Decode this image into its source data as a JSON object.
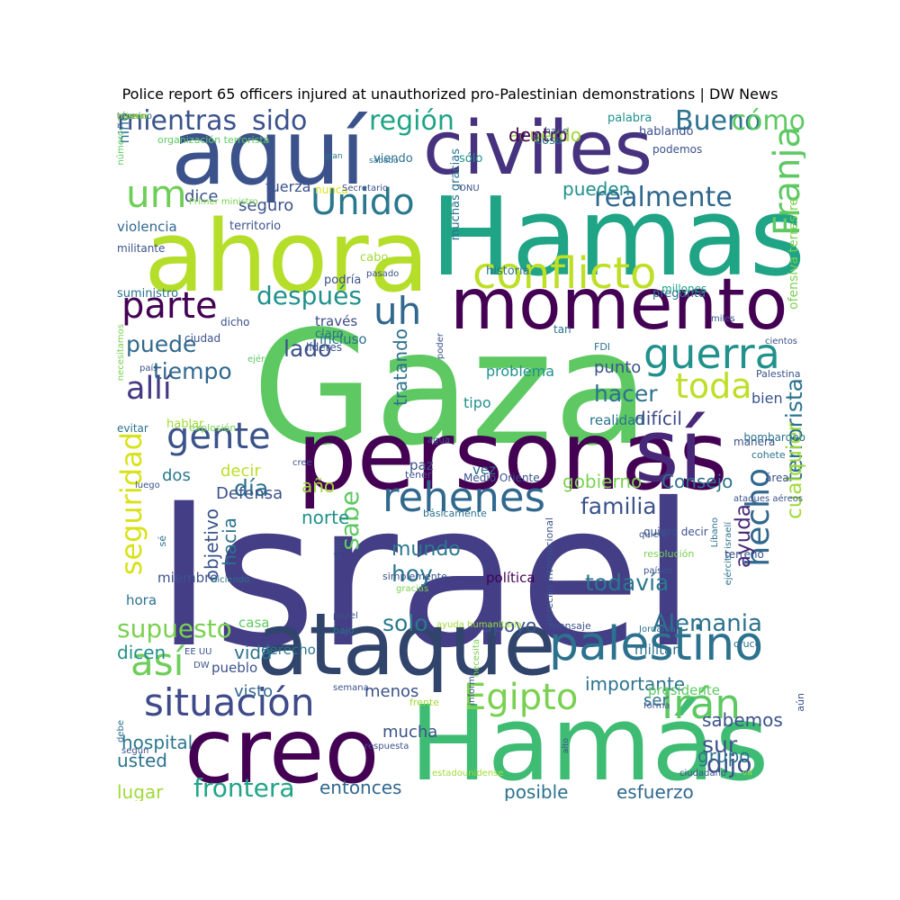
{
  "title": "Police report 65 officers injured at unauthorized pro-Palestinian demonstrations | DW News",
  "words": [
    {
      "text": "Israel",
      "color": "#433e85"
    },
    {
      "text": "Gaza",
      "color": "#5ec962"
    },
    {
      "text": "Hamás",
      "color": "#3fbc73"
    },
    {
      "text": "Hamas",
      "color": "#20a486"
    },
    {
      "text": "personas",
      "color": "#440154"
    },
    {
      "text": "ahora",
      "color": "#b5de2b"
    },
    {
      "text": "aquí",
      "color": "#3b528b"
    },
    {
      "text": "ataque",
      "color": "#31446b"
    },
    {
      "text": "creo",
      "color": "#440154"
    },
    {
      "text": "civiles",
      "color": "#46327e"
    },
    {
      "text": "momento",
      "color": "#440154"
    },
    {
      "text": "sí",
      "color": "#482878"
    },
    {
      "text": "palestino",
      "color": "#2c728e"
    },
    {
      "text": "rehenes",
      "color": "#31688e"
    },
    {
      "text": "conflicto",
      "color": "#bddf26"
    },
    {
      "text": "situación",
      "color": "#3e4a89"
    },
    {
      "text": "guerra",
      "color": "#21918c"
    },
    {
      "text": "Egipto",
      "color": "#7ad151"
    },
    {
      "text": "Irán",
      "color": "#5ec962"
    },
    {
      "text": "gente",
      "color": "#3b528b"
    },
    {
      "text": "parte",
      "color": "#440154"
    },
    {
      "text": "uh",
      "color": "#31688e"
    },
    {
      "text": "allí",
      "color": "#443983"
    },
    {
      "text": "toda",
      "color": "#bddf26"
    },
    {
      "text": "así",
      "color": "#6ece58"
    },
    {
      "text": "Unido",
      "color": "#2a788e"
    },
    {
      "text": "um",
      "color": "#6ece58"
    },
    {
      "text": "Franja",
      "color": "#5ec962"
    },
    {
      "text": "hecho",
      "color": "#31688e"
    },
    {
      "text": "seguridad",
      "color": "#d8e219"
    },
    {
      "text": "región",
      "color": "#20a486"
    },
    {
      "text": "realmente",
      "color": "#31688e"
    },
    {
      "text": "mientras",
      "color": "#3b528b"
    },
    {
      "text": "sido",
      "color": "#3b528b"
    },
    {
      "text": "Bueno",
      "color": "#2c728e"
    },
    {
      "text": "cómo",
      "color": "#5ec962"
    },
    {
      "text": "después",
      "color": "#21918c"
    },
    {
      "text": "puede",
      "color": "#31688e"
    },
    {
      "text": "tiempo",
      "color": "#31688e"
    },
    {
      "text": "lado",
      "color": "#3b528b"
    },
    {
      "text": "hacer",
      "color": "#2c728e"
    },
    {
      "text": "supuesto",
      "color": "#7ad151"
    },
    {
      "text": "Alemania",
      "color": "#2c728e"
    },
    {
      "text": "frontera",
      "color": "#20a486"
    },
    {
      "text": "familia",
      "color": "#3b528b"
    },
    {
      "text": "todavía",
      "color": "#2a788e"
    },
    {
      "text": "ayuda",
      "color": "#482878"
    },
    {
      "text": "dijo",
      "color": "#3b528b"
    },
    {
      "text": "sur",
      "color": "#3b528b"
    },
    {
      "text": "día",
      "color": "#2c728e"
    },
    {
      "text": "hoy",
      "color": "#2a788e"
    },
    {
      "text": "solo",
      "color": "#2a788e"
    },
    {
      "text": "sabe",
      "color": "#5ec962"
    },
    {
      "text": "terrorista",
      "color": "#2c728e"
    },
    {
      "text": "cualquier",
      "color": "#a0da39"
    },
    {
      "text": "difícil",
      "color": "#3e4a89"
    },
    {
      "text": "acuerdo",
      "color": "#a0da39"
    },
    {
      "text": "dentro",
      "color": "#440154"
    },
    {
      "text": "pueden",
      "color": "#21918c"
    },
    {
      "text": "mundo",
      "color": "#2a788e"
    },
    {
      "text": "gobierno",
      "color": "#7ad151"
    },
    {
      "text": "Consejo",
      "color": "#2c728e"
    },
    {
      "text": "apoyo",
      "color": "#3b528b"
    },
    {
      "text": "importante",
      "color": "#2c728e"
    },
    {
      "text": "sabemos",
      "color": "#3b528b"
    },
    {
      "text": "posible",
      "color": "#2c728e"
    },
    {
      "text": "esfuerzo",
      "color": "#31688e"
    },
    {
      "text": "entonces",
      "color": "#31688e"
    },
    {
      "text": "hospital",
      "color": "#2a788e"
    },
    {
      "text": "usted",
      "color": "#2c728e"
    },
    {
      "text": "lugar",
      "color": "#a0da39"
    },
    {
      "text": "visto",
      "color": "#31688e"
    },
    {
      "text": "menos",
      "color": "#3b528b"
    },
    {
      "text": "mucha",
      "color": "#3b528b"
    },
    {
      "text": "ser",
      "color": "#2c728e"
    },
    {
      "text": "grupo",
      "color": "#2c728e"
    },
    {
      "text": "dicen",
      "color": "#21918c"
    },
    {
      "text": "vida",
      "color": "#2c728e"
    },
    {
      "text": "dos",
      "color": "#2a788e"
    },
    {
      "text": "decir",
      "color": "#bddf26"
    },
    {
      "text": "norte",
      "color": "#21918c"
    },
    {
      "text": "año",
      "color": "#a0da39"
    },
    {
      "text": "objetivo",
      "color": "#3b528b"
    },
    {
      "text": "hacia",
      "color": "#2c728e"
    },
    {
      "text": "tratando",
      "color": "#2c728e"
    },
    {
      "text": "seguro",
      "color": "#3b528b"
    },
    {
      "text": "dice",
      "color": "#3b528b"
    },
    {
      "text": "fuerza",
      "color": "#3b528b"
    },
    {
      "text": "niño",
      "color": "#2c728e"
    },
    {
      "text": "violencia",
      "color": "#31688e"
    },
    {
      "text": "punto",
      "color": "#3b528b"
    },
    {
      "text": "bien",
      "color": "#3b528b"
    },
    {
      "text": "problema",
      "color": "#21918c"
    },
    {
      "text": "realidad",
      "color": "#2c728e"
    },
    {
      "text": "tipo",
      "color": "#21918c"
    },
    {
      "text": "paz",
      "color": "#3b528b"
    },
    {
      "text": "vez",
      "color": "#2c728e"
    },
    {
      "text": "política",
      "color": "#440154"
    },
    {
      "text": "Defensa",
      "color": "#3b528b"
    },
    {
      "text": "miembro",
      "color": "#3b528b"
    },
    {
      "text": "hora",
      "color": "#2c728e"
    },
    {
      "text": "casa",
      "color": "#5ec962"
    },
    {
      "text": "derecho",
      "color": "#2c728e"
    },
    {
      "text": "pueblo",
      "color": "#3b528b"
    },
    {
      "text": "militar",
      "color": "#2c728e"
    },
    {
      "text": "presidente",
      "color": "#5ec962"
    },
    {
      "text": "través",
      "color": "#3e4a89"
    },
    {
      "text": "incluso",
      "color": "#2c728e"
    },
    {
      "text": "claro",
      "color": "#2c728e"
    },
    {
      "text": "territorio",
      "color": "#3b528b"
    },
    {
      "text": "palabra",
      "color": "#21918c"
    },
    {
      "text": "hablando",
      "color": "#3b528b"
    },
    {
      "text": "viendo",
      "color": "#2c728e"
    },
    {
      "text": "sólo",
      "color": "#21918c"
    },
    {
      "text": "cabo",
      "color": "#a0da39"
    },
    {
      "text": "suministro",
      "color": "#2c728e"
    },
    {
      "text": "podría",
      "color": "#3b528b"
    },
    {
      "text": "historia",
      "color": "#2c728e"
    },
    {
      "text": "pregunta",
      "color": "#2c728e"
    },
    {
      "text": "millones",
      "color": "#20a486"
    },
    {
      "text": "ofensiva terrestre",
      "color": "#7ad151"
    },
    {
      "text": "muchas gracias",
      "color": "#2c728e"
    },
    {
      "text": "militante",
      "color": "#3b528b"
    },
    {
      "text": "hablar",
      "color": "#a0da39"
    },
    {
      "text": "evitar",
      "color": "#2c728e"
    },
    {
      "text": "manera",
      "color": "#3b528b"
    },
    {
      "text": "bombardeo",
      "color": "#2c728e"
    },
    {
      "text": "cohete",
      "color": "#2c728e"
    },
    {
      "text": "área",
      "color": "#3b528b"
    },
    {
      "text": "tan",
      "color": "#2c728e"
    },
    {
      "text": "FDI",
      "color": "#2c728e"
    },
    {
      "text": "Palestina",
      "color": "#3b528b"
    },
    {
      "text": "cientos",
      "color": "#3b528b"
    },
    {
      "text": "miles",
      "color": "#3b528b"
    },
    {
      "text": "líderes",
      "color": "#3b528b"
    },
    {
      "text": "dicho",
      "color": "#3b528b"
    },
    {
      "text": "ciudad",
      "color": "#3b528b"
    },
    {
      "text": "ejército",
      "color": "#5ec962"
    },
    {
      "text": "país",
      "color": "#3b528b"
    },
    {
      "text": "necesitamos",
      "color": "#7ad151"
    },
    {
      "text": "explosión",
      "color": "#7ad151"
    },
    {
      "text": "tener",
      "color": "#3b528b"
    },
    {
      "text": "Medio Oriente",
      "color": "#3b528b"
    },
    {
      "text": "básicamente",
      "color": "#2c728e"
    },
    {
      "text": "derecho internacional",
      "color": "#3b528b"
    },
    {
      "text": "quiero decir",
      "color": "#3b528b"
    },
    {
      "text": "Líbano",
      "color": "#2c728e"
    },
    {
      "text": "ejército israelí",
      "color": "#2c728e"
    },
    {
      "text": "ataques aéreos",
      "color": "#3b528b"
    },
    {
      "text": "terreno",
      "color": "#3b528b"
    },
    {
      "text": "quiere",
      "color": "#3b528b"
    },
    {
      "text": "resolución",
      "color": "#7ad151"
    },
    {
      "text": "países",
      "color": "#3b528b"
    },
    {
      "text": "sino",
      "color": "#3b528b"
    },
    {
      "text": "sé",
      "color": "#2c728e"
    },
    {
      "text": "simplemente",
      "color": "#3b528b"
    },
    {
      "text": "gracias",
      "color": "#7ad151"
    },
    {
      "text": "diciendo",
      "color": "#2c728e"
    },
    {
      "text": "cree",
      "color": "#3b528b"
    },
    {
      "text": "luego",
      "color": "#3b528b"
    },
    {
      "text": "bajo",
      "color": "#2c728e"
    },
    {
      "text": "papel",
      "color": "#3b528b"
    },
    {
      "text": "ayuda humanitaria",
      "color": "#a0da39"
    },
    {
      "text": "mensaje",
      "color": "#3b528b"
    },
    {
      "text": "Jordania",
      "color": "#2c728e"
    },
    {
      "text": "cruce",
      "color": "#2c728e"
    },
    {
      "text": "EE UU",
      "color": "#3b528b"
    },
    {
      "text": "DW",
      "color": "#3b528b"
    },
    {
      "text": "semana",
      "color": "#3b528b"
    },
    {
      "text": "informe",
      "color": "#3b528b"
    },
    {
      "text": "frente",
      "color": "#a0da39"
    },
    {
      "text": "forma",
      "color": "#3b528b"
    },
    {
      "text": "aún",
      "color": "#3b528b"
    },
    {
      "text": "alto",
      "color": "#3b528b"
    },
    {
      "text": "ciudadano",
      "color": "#3b528b"
    },
    {
      "text": "va",
      "color": "#a0da39"
    },
    {
      "text": "respuesta",
      "color": "#3b528b"
    },
    {
      "text": "estadounidense",
      "color": "#a0da39"
    },
    {
      "text": "debe",
      "color": "#2c728e"
    },
    {
      "text": "según",
      "color": "#3b528b"
    },
    {
      "text": "necesita",
      "color": "#7ad151"
    },
    {
      "text": "agua",
      "color": "#3b528b"
    },
    {
      "text": "cosa",
      "color": "#2c728e"
    },
    {
      "text": "hace",
      "color": "#3b528b"
    },
    {
      "text": "podemos",
      "color": "#3b528b"
    },
    {
      "text": "ONU",
      "color": "#3b528b"
    },
    {
      "text": "nunca",
      "color": "#d8e219"
    },
    {
      "text": "Secretario",
      "color": "#3b528b"
    },
    {
      "text": "sábado",
      "color": "#2c728e"
    },
    {
      "text": "gran",
      "color": "#2c728e"
    },
    {
      "text": "organización terrorista",
      "color": "#5ec962"
    },
    {
      "text": "número",
      "color": "#5ec962"
    },
    {
      "text": "Primer ministro",
      "color": "#7ad151"
    },
    {
      "text": "pasado",
      "color": "#3b528b"
    },
    {
      "text": "poder",
      "color": "#3b528b"
    },
    {
      "text": "ver",
      "color": "#3b528b"
    },
    {
      "text": "parece",
      "color": "#a0da39"
    },
    {
      "text": "término",
      "color": "#2c728e"
    },
    {
      "text": "cerca",
      "color": "#2c728e"
    },
    {
      "text": "mismo",
      "color": "#a0da39"
    }
  ]
}
